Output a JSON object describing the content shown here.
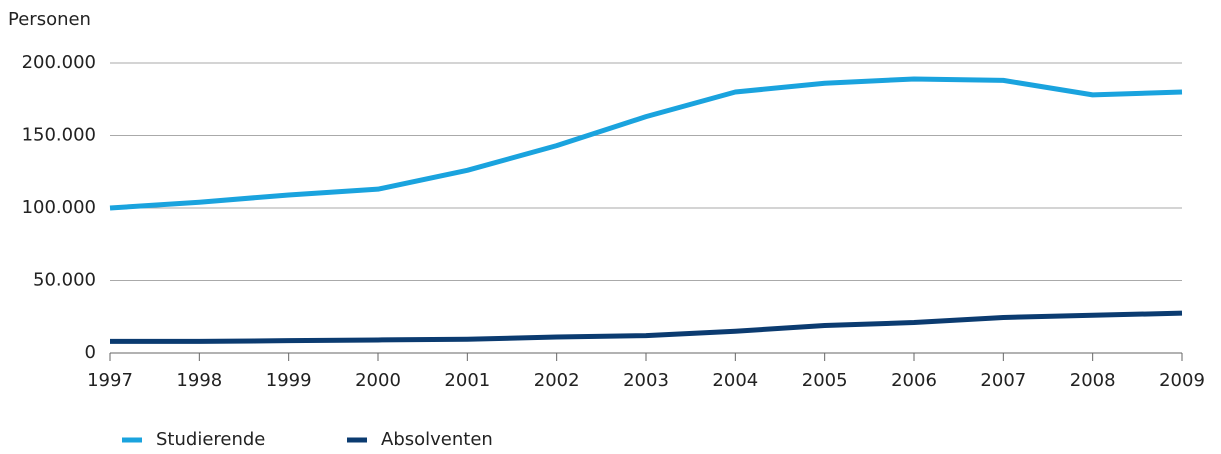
{
  "chart_data": {
    "type": "line",
    "y_label": "Personen",
    "categories": [
      "1997",
      "1998",
      "1999",
      "2000",
      "2001",
      "2002",
      "2003",
      "2004",
      "2005",
      "2006",
      "2007",
      "2008",
      "2009"
    ],
    "series": [
      {
        "name": "Studierende",
        "color": "#1aa3de",
        "values": [
          100000,
          104000,
          109000,
          113000,
          126000,
          143000,
          163000,
          180000,
          186000,
          189000,
          188000,
          178000,
          180000
        ]
      },
      {
        "name": "Absolventen",
        "color": "#0b3b70",
        "values": [
          8000,
          8000,
          8500,
          9000,
          9500,
          11000,
          12000,
          15000,
          19000,
          21000,
          24500,
          26000,
          27500
        ]
      }
    ],
    "ylim": [
      0,
      200000
    ],
    "yticks": [
      0,
      {
        "value": 50000,
        "label": "50.000"
      },
      {
        "value": 100000,
        "label": "100.000"
      },
      {
        "value": 150000,
        "label": "150.000"
      },
      {
        "value": 200000,
        "label": "200.000"
      }
    ],
    "grid": true
  }
}
